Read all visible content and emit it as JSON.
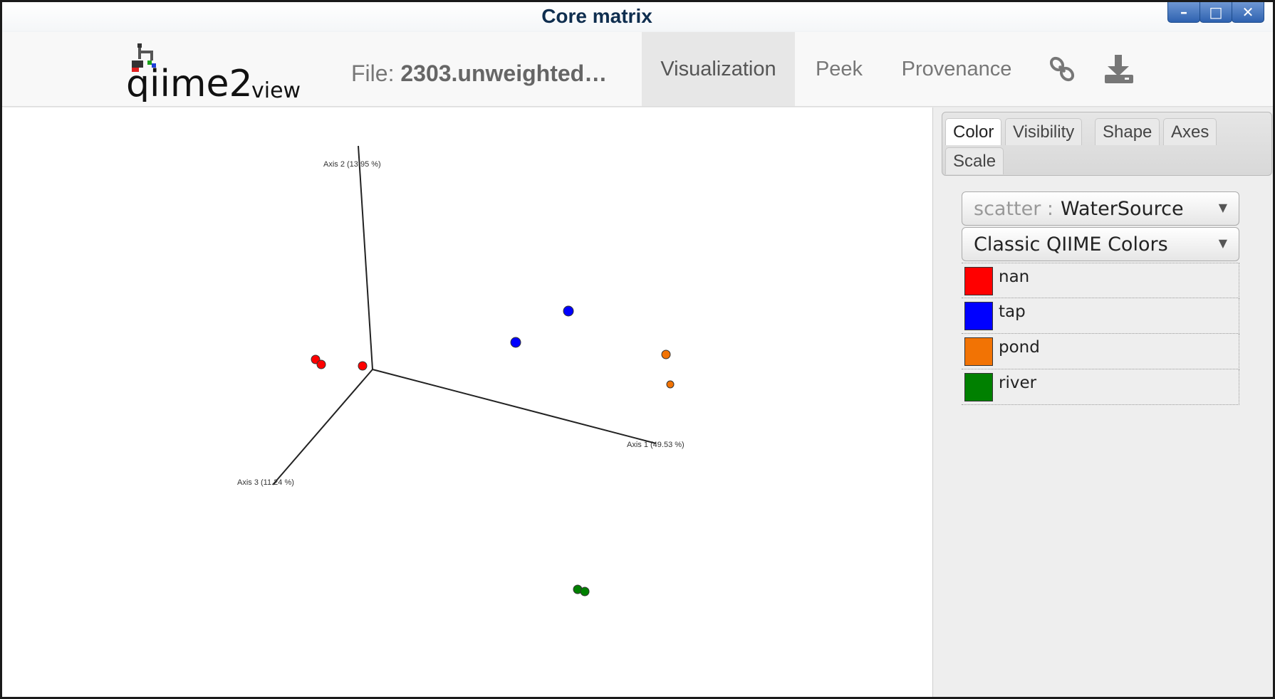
{
  "window": {
    "title": "Core matrix",
    "controls": {
      "minimize": "–",
      "maximize": "□",
      "close": "✕"
    }
  },
  "nav": {
    "logo_text": "qiime2",
    "logo_sub": "view",
    "file_prefix": "File: ",
    "file_name": "2303.unweighted…",
    "tabs": [
      {
        "label": "Visualization",
        "active": true
      },
      {
        "label": "Peek",
        "active": false
      },
      {
        "label": "Provenance",
        "active": false
      }
    ],
    "icons": [
      "link-icon",
      "download-icon"
    ]
  },
  "panel": {
    "tabs": [
      "Color",
      "Visibility",
      "Shape",
      "Axes",
      "Scale"
    ],
    "active_tab": "Color",
    "scatter_label": "scatter :",
    "scatter_value": "WaterSource",
    "color_scheme": "Classic QIIME Colors",
    "legend": [
      {
        "label": "nan",
        "color": "#ff0000"
      },
      {
        "label": "tap",
        "color": "#0000ff"
      },
      {
        "label": "pond",
        "color": "#f27304"
      },
      {
        "label": "river",
        "color": "#008000"
      }
    ]
  },
  "chart_data": {
    "type": "scatter",
    "axis_labels": [
      "Axis 1 (49.53 %)",
      "Axis 2 (13.95 %)",
      "Axis 3 (11.24 %)"
    ],
    "groups": [
      {
        "name": "nan",
        "color": "#ff0000",
        "count": 3
      },
      {
        "name": "tap",
        "color": "#0000ff",
        "count": 2
      },
      {
        "name": "pond",
        "color": "#f27304",
        "count": 2
      },
      {
        "name": "river",
        "color": "#008000",
        "count": 2
      }
    ]
  }
}
